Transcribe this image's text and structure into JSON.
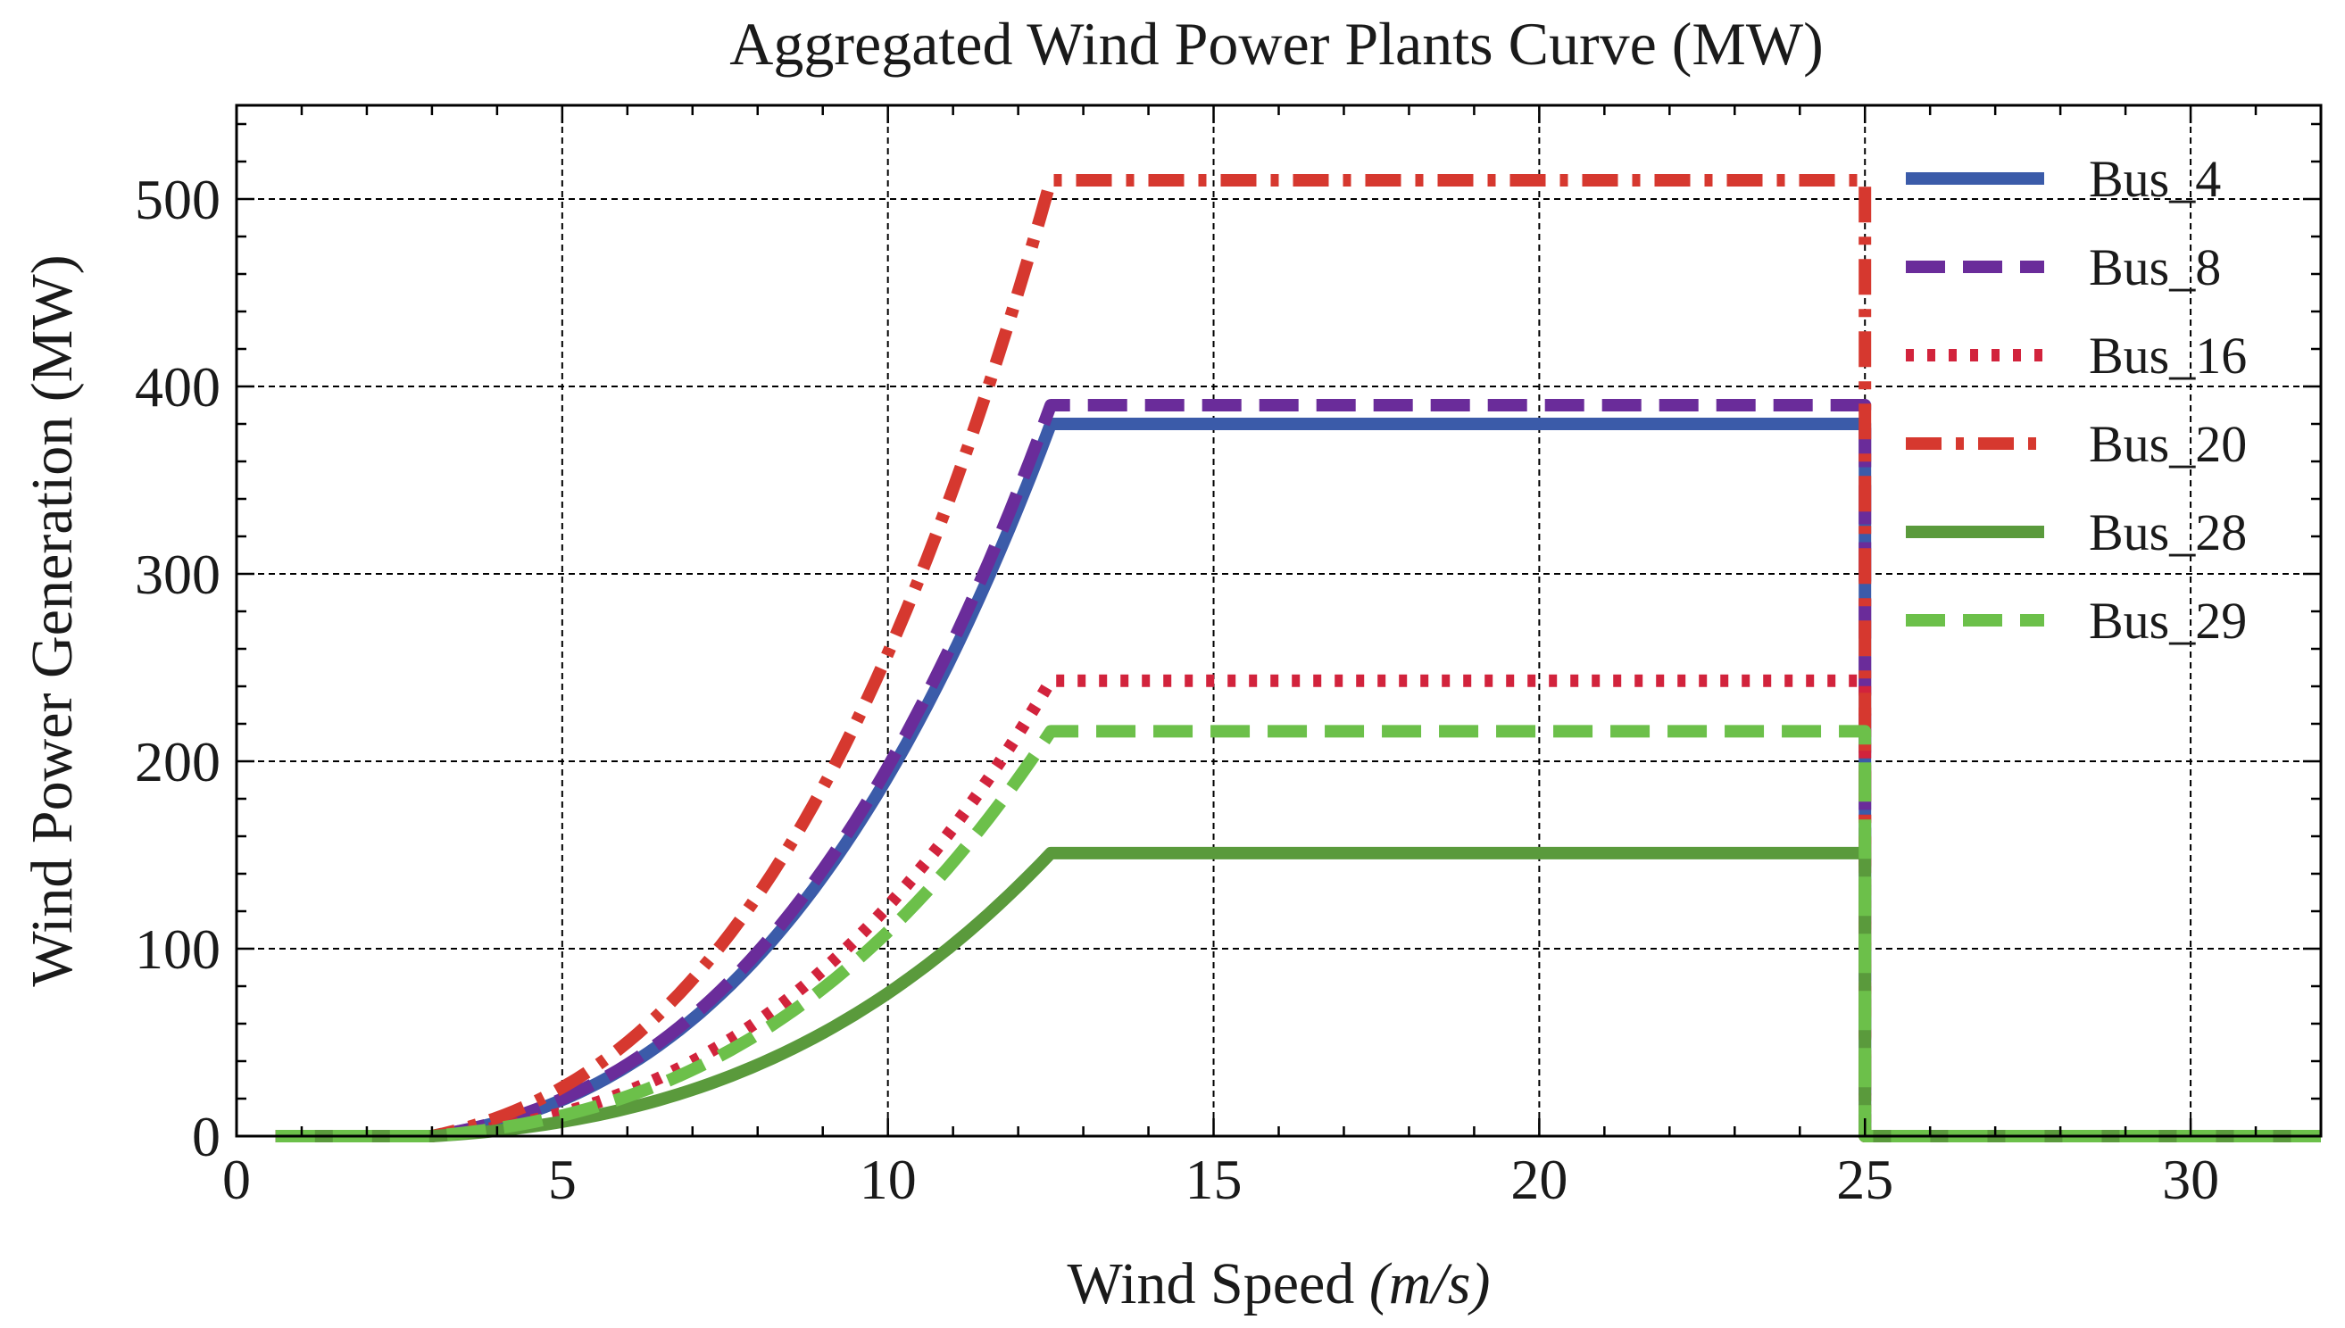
{
  "chart_data": {
    "type": "line",
    "title": "Aggregated Wind Power Plants Curve (MW)",
    "xlabel": "Wind Speed",
    "xlabel_unit": "(m/s)",
    "ylabel": "Wind Power Generation (MW)",
    "xlim": [
      0,
      32
    ],
    "ylim": [
      0,
      550
    ],
    "xticks": [
      0,
      5,
      10,
      15,
      20,
      25,
      30
    ],
    "yticks": [
      0,
      100,
      200,
      300,
      400,
      500
    ],
    "grid": true,
    "legend_position": "top-right",
    "power_curve": {
      "cut_in": 3,
      "rated_speed": 12.5,
      "cut_out": 25,
      "plot_start": 0.6,
      "plot_end": 32
    },
    "series": [
      {
        "name": "Bus_4",
        "rated_mw": 380,
        "color": "#3b5ba9",
        "style": "solid"
      },
      {
        "name": "Bus_8",
        "rated_mw": 390,
        "color": "#6a2c9a",
        "style": "dashed"
      },
      {
        "name": "Bus_16",
        "rated_mw": 243,
        "color": "#d2233c",
        "style": "dotted"
      },
      {
        "name": "Bus_20",
        "rated_mw": 510,
        "color": "#d6382f",
        "style": "dashdot"
      },
      {
        "name": "Bus_28",
        "rated_mw": 151,
        "color": "#5a9a3c",
        "style": "solid"
      },
      {
        "name": "Bus_29",
        "rated_mw": 216,
        "color": "#6cc04a",
        "style": "dashed"
      }
    ]
  }
}
